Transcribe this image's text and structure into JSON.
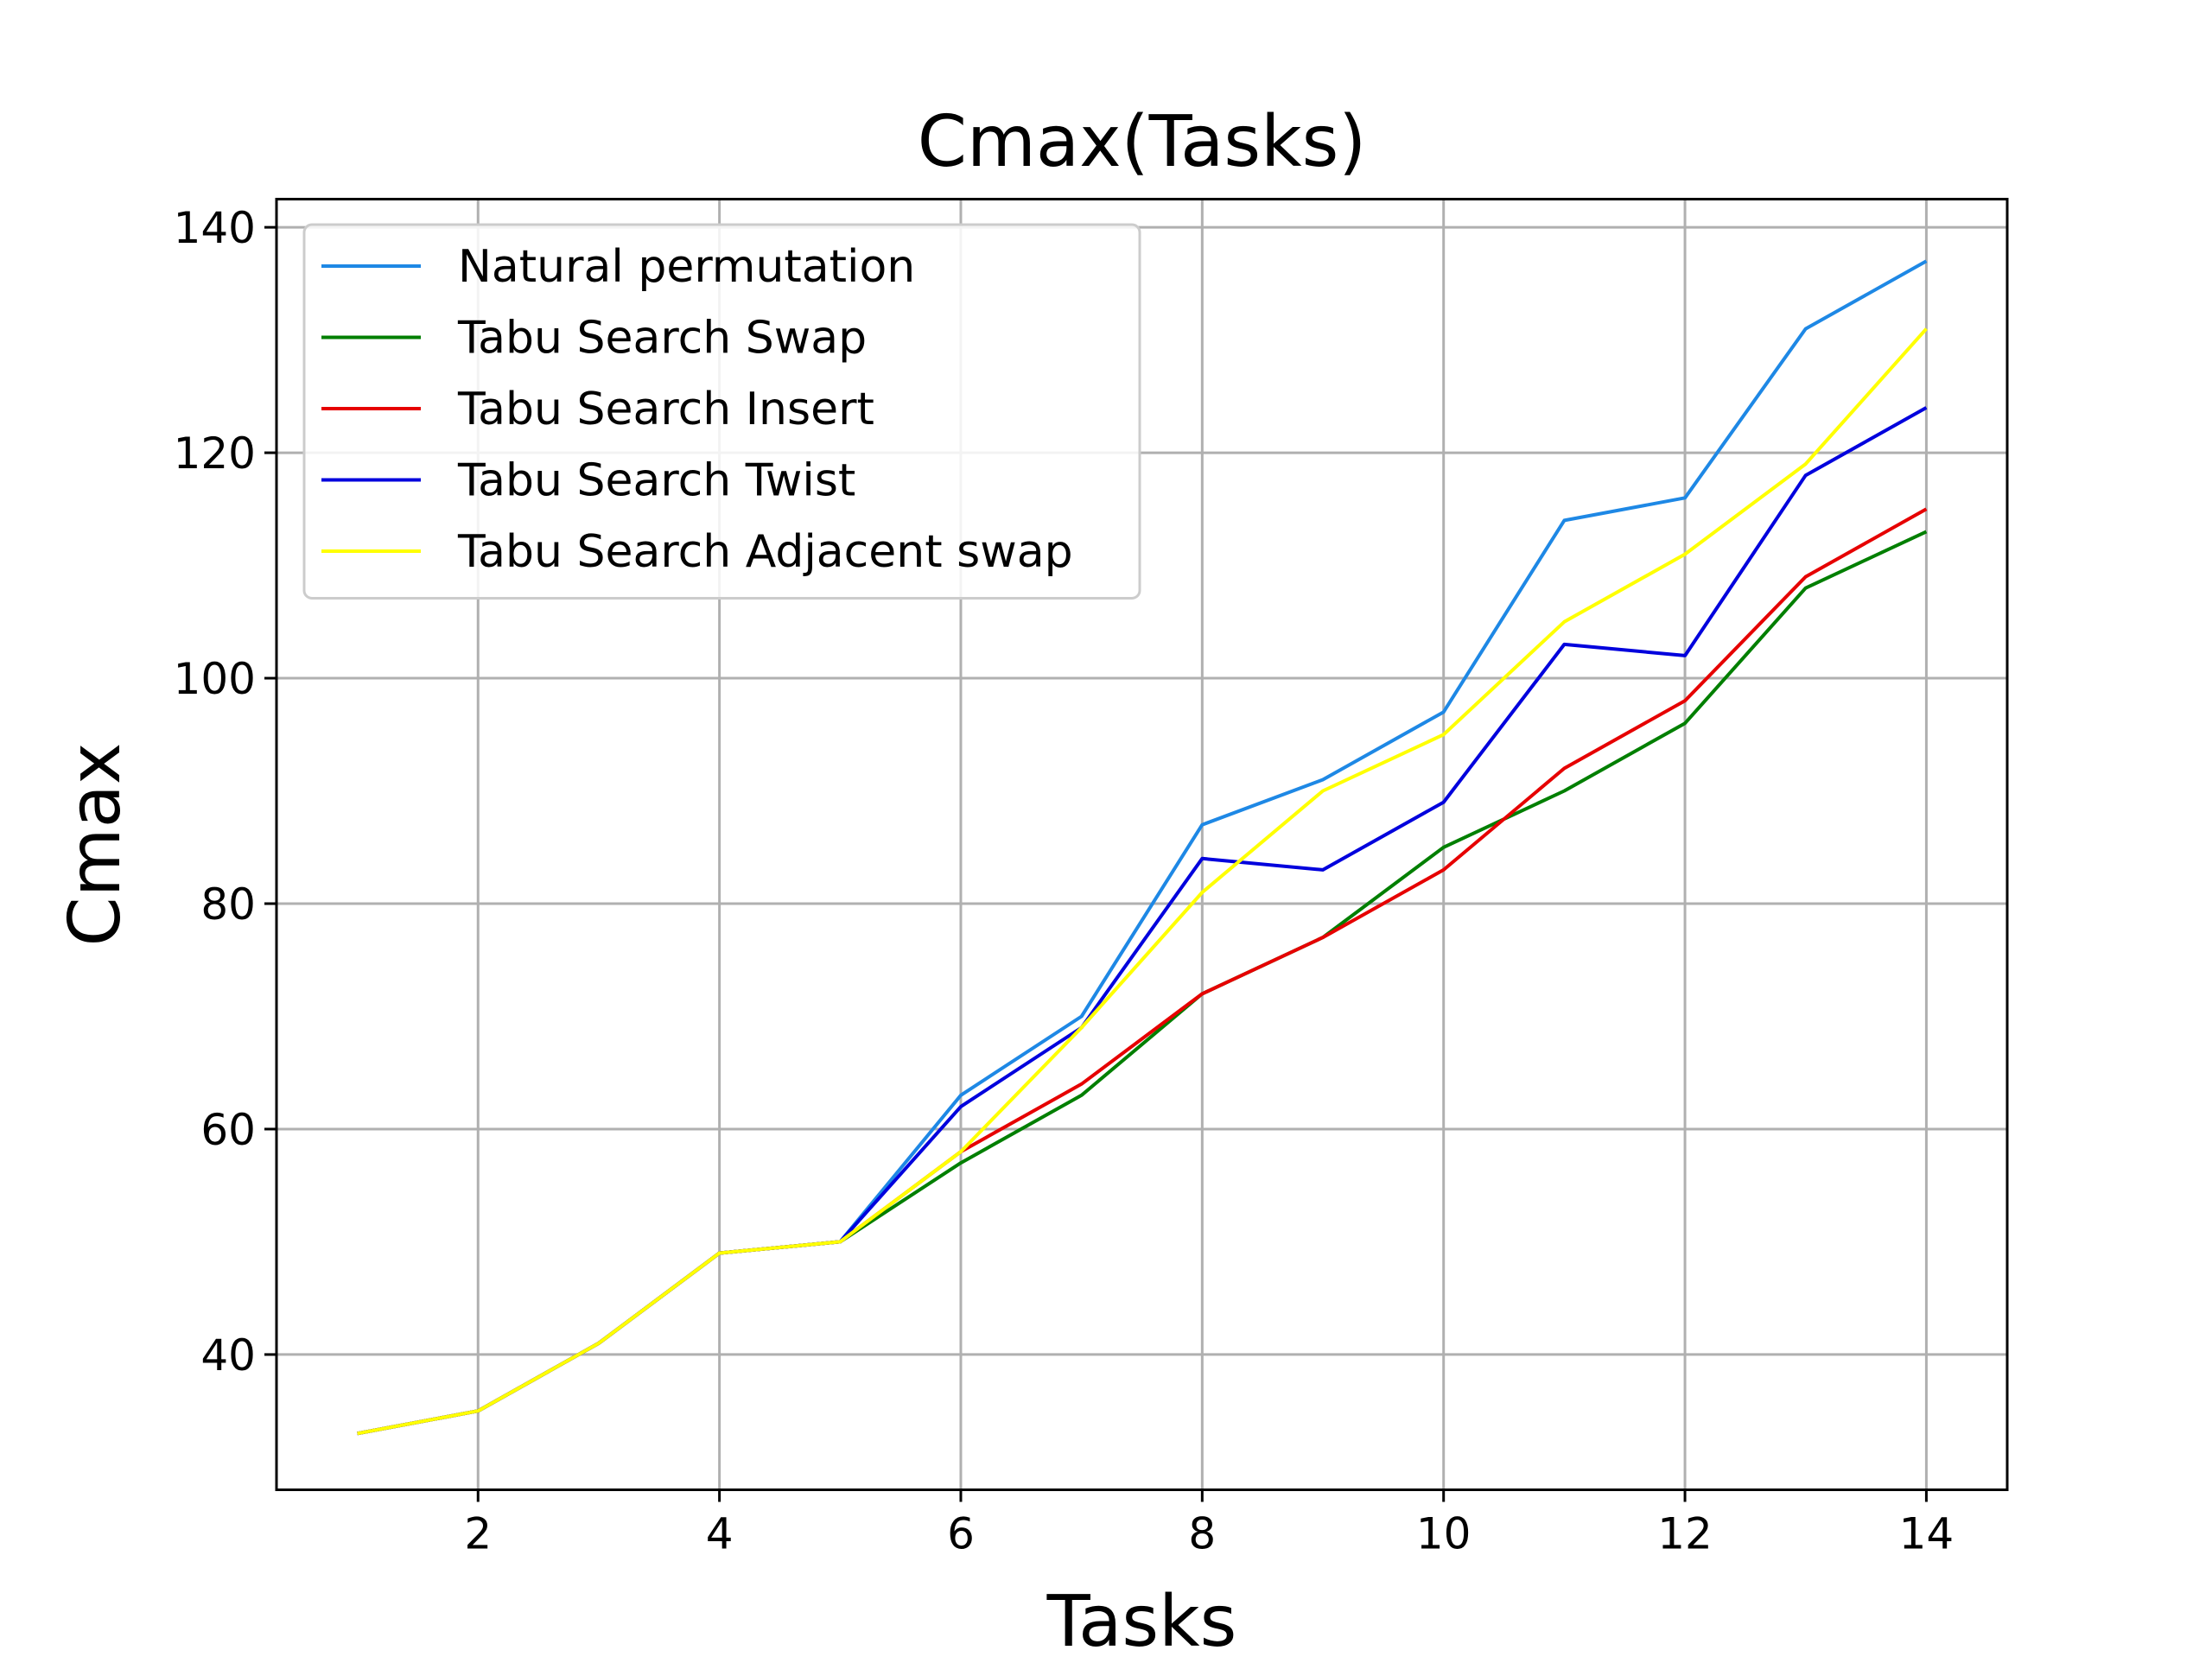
{
  "chart_data": {
    "type": "line",
    "title": "Cmax(Tasks)",
    "xlabel": "Tasks",
    "ylabel": "Cmax",
    "xlim": [
      0.33,
      14.67
    ],
    "ylim": [
      28,
      142.5
    ],
    "xticks": [
      2,
      4,
      6,
      8,
      10,
      12,
      14
    ],
    "yticks": [
      40,
      60,
      80,
      100,
      120,
      140
    ],
    "grid": true,
    "legend_position": "upper-left",
    "x": [
      1,
      2,
      3,
      4,
      5,
      6,
      7,
      8,
      9,
      10,
      11,
      12,
      13,
      14
    ],
    "series": [
      {
        "name": "Natural permutation",
        "color": "#1e88e5",
        "values": [
          33,
          35,
          41,
          49,
          50,
          63,
          70,
          87,
          91,
          97,
          114,
          116,
          131,
          137
        ]
      },
      {
        "name": "Tabu Search Swap",
        "color": "#007f00",
        "values": [
          33,
          35,
          41,
          49,
          50,
          57,
          63,
          72,
          77,
          85,
          90,
          96,
          108,
          113
        ]
      },
      {
        "name": "Tabu Search Insert",
        "color": "#e60000",
        "values": [
          33,
          35,
          41,
          49,
          50,
          58,
          64,
          72,
          77,
          83,
          92,
          98,
          109,
          115
        ]
      },
      {
        "name": "Tabu Search Twist",
        "color": "#0000dd",
        "values": [
          33,
          35,
          41,
          49,
          50,
          62,
          69,
          84,
          83,
          89,
          103,
          102,
          118,
          124
        ]
      },
      {
        "name": "Tabu Search Adjacent swap",
        "color": "#ffff00",
        "values": [
          33,
          35,
          41,
          49,
          50,
          58,
          69,
          81,
          90,
          95,
          105,
          111,
          119,
          131
        ]
      }
    ]
  }
}
